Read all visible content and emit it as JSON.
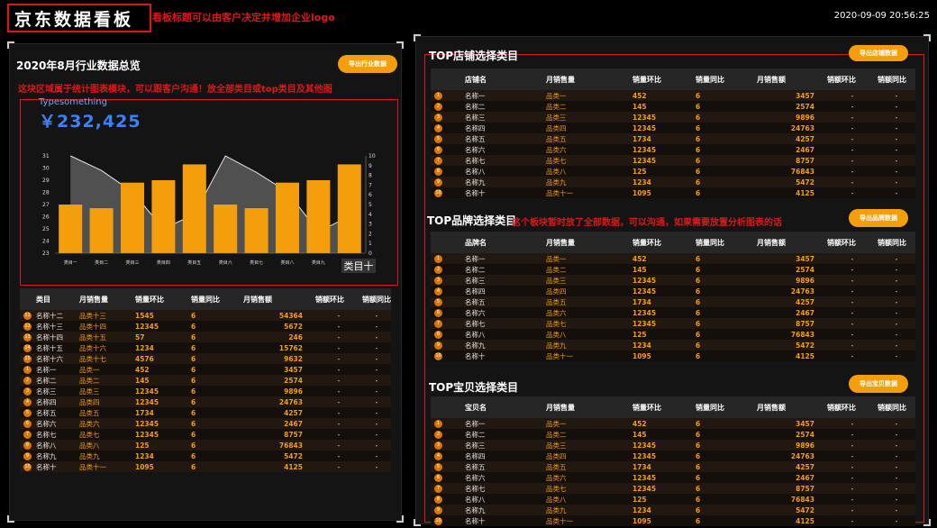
{
  "header": {
    "title": "京东数据看板",
    "note": "看板标题可以由客户决定并增加企业logo",
    "datetime": "2020-09-09 20:56:25"
  },
  "colors": {
    "accent": "#f59e0b",
    "red": "#e0161b",
    "blue": "#3b82f6"
  },
  "left_panel": {
    "title": "2020年8月行业数据总览",
    "export_label": "导出行业数据",
    "note": "这块区域属于统计图表模块，可以跟客户沟通！放全部类目或top类目及其他图",
    "chart_caption": "Typesomething",
    "chart_value": "￥232,425",
    "category_badge": "类目十",
    "table": {
      "columns": [
        "类目",
        "月销售量",
        "销量环比",
        "销量同比",
        "月销售额",
        "销额环比",
        "销额同比"
      ],
      "rows": [
        {
          "rank": "11",
          "name": "名称十二",
          "cat": "品类十三",
          "mom": "1545",
          "yoy": "6",
          "amount": "54364",
          "amom": "-",
          "ayoy": "-"
        },
        {
          "rank": "12",
          "name": "名称十三",
          "cat": "品类十四",
          "mom": "12345",
          "yoy": "6",
          "amount": "5672",
          "amom": "-",
          "ayoy": "-"
        },
        {
          "rank": "13",
          "name": "名称十四",
          "cat": "品类十五",
          "mom": "57",
          "yoy": "6",
          "amount": "246",
          "amom": "-",
          "ayoy": "-"
        },
        {
          "rank": "14",
          "name": "名称十五",
          "cat": "品类十六",
          "mom": "1234",
          "yoy": "6",
          "amount": "15762",
          "amom": "-",
          "ayoy": "-"
        },
        {
          "rank": "15",
          "name": "名称十六",
          "cat": "品类十七",
          "mom": "4576",
          "yoy": "6",
          "amount": "9632",
          "amom": "-",
          "ayoy": "-"
        },
        {
          "rank": "1",
          "name": "名称一",
          "cat": "品类一",
          "mom": "452",
          "yoy": "6",
          "amount": "3457",
          "amom": "-",
          "ayoy": "-"
        },
        {
          "rank": "2",
          "name": "名称二",
          "cat": "品类二",
          "mom": "145",
          "yoy": "6",
          "amount": "2574",
          "amom": "-",
          "ayoy": "-"
        },
        {
          "rank": "3",
          "name": "名称三",
          "cat": "品类三",
          "mom": "12345",
          "yoy": "6",
          "amount": "9896",
          "amom": "-",
          "ayoy": "-"
        },
        {
          "rank": "4",
          "name": "名称四",
          "cat": "品类四",
          "mom": "12345",
          "yoy": "6",
          "amount": "24763",
          "amom": "-",
          "ayoy": "-"
        },
        {
          "rank": "5",
          "name": "名称五",
          "cat": "品类五",
          "mom": "1734",
          "yoy": "6",
          "amount": "4257",
          "amom": "-",
          "ayoy": "-"
        },
        {
          "rank": "6",
          "name": "名称六",
          "cat": "品类六",
          "mom": "12345",
          "yoy": "6",
          "amount": "2467",
          "amom": "-",
          "ayoy": "-"
        },
        {
          "rank": "7",
          "name": "名称七",
          "cat": "品类七",
          "mom": "12345",
          "yoy": "6",
          "amount": "8757",
          "amom": "-",
          "ayoy": "-"
        },
        {
          "rank": "8",
          "name": "名称八",
          "cat": "品类八",
          "mom": "125",
          "yoy": "6",
          "amount": "76843",
          "amom": "-",
          "ayoy": "-"
        },
        {
          "rank": "9",
          "name": "名称九",
          "cat": "品类九",
          "mom": "1234",
          "yoy": "6",
          "amount": "5472",
          "amom": "-",
          "ayoy": "-"
        },
        {
          "rank": "10",
          "name": "名称十",
          "cat": "品类十一",
          "mom": "1095",
          "yoy": "6",
          "amount": "4125",
          "amom": "-",
          "ayoy": "-"
        }
      ]
    }
  },
  "chart_data": {
    "type": "bar",
    "categories": [
      "类目一",
      "类目二",
      "类目三",
      "类目四",
      "类目五",
      "类目六",
      "类目七",
      "类目八",
      "类目九",
      "类目十"
    ],
    "series": [
      {
        "name": "bars",
        "axis": "left",
        "values": [
          27,
          26.7,
          28.8,
          29,
          30.3,
          27,
          26.7,
          28.8,
          29,
          30.3
        ]
      },
      {
        "name": "area",
        "axis": "right",
        "values": [
          10,
          8.5,
          6.3,
          2.5,
          4,
          10,
          8.3,
          6.3,
          2.2,
          3.8
        ]
      }
    ],
    "y_left": {
      "min": 23,
      "max": 31,
      "ticks": [
        "23",
        "24",
        "25",
        "26",
        "27",
        "28",
        "29",
        "30",
        "31"
      ]
    },
    "y_right": {
      "min": 0,
      "max": 10,
      "ticks": [
        "0",
        "1",
        "2",
        "3",
        "4",
        "5",
        "6",
        "7",
        "8",
        "9",
        "10"
      ]
    },
    "xlabel": "",
    "ylabel": ""
  },
  "right_panel": {
    "store": {
      "title": "TOP店铺选择类目",
      "export_label": "导出店铺数据",
      "columns": [
        "店铺名",
        "月销售量",
        "销量环比",
        "销量同比",
        "月销售额",
        "销额环比",
        "销额同比"
      ],
      "rows": [
        {
          "rank": "1",
          "name": "名称一",
          "cat": "品类一",
          "mom": "452",
          "yoy": "6",
          "amount": "3457",
          "amom": "-",
          "ayoy": "-"
        },
        {
          "rank": "2",
          "name": "名称二",
          "cat": "品类二",
          "mom": "145",
          "yoy": "6",
          "amount": "2574",
          "amom": "-",
          "ayoy": "-"
        },
        {
          "rank": "3",
          "name": "名称三",
          "cat": "品类三",
          "mom": "12345",
          "yoy": "6",
          "amount": "9896",
          "amom": "-",
          "ayoy": "-"
        },
        {
          "rank": "4",
          "name": "名称四",
          "cat": "品类四",
          "mom": "12345",
          "yoy": "6",
          "amount": "24763",
          "amom": "-",
          "ayoy": "-"
        },
        {
          "rank": "5",
          "name": "名称五",
          "cat": "品类五",
          "mom": "1734",
          "yoy": "6",
          "amount": "4257",
          "amom": "-",
          "ayoy": "-"
        },
        {
          "rank": "6",
          "name": "名称六",
          "cat": "品类六",
          "mom": "12345",
          "yoy": "6",
          "amount": "2467",
          "amom": "-",
          "ayoy": "-"
        },
        {
          "rank": "7",
          "name": "名称七",
          "cat": "品类七",
          "mom": "12345",
          "yoy": "6",
          "amount": "8757",
          "amom": "-",
          "ayoy": "-"
        },
        {
          "rank": "8",
          "name": "名称八",
          "cat": "品类八",
          "mom": "125",
          "yoy": "6",
          "amount": "76843",
          "amom": "-",
          "ayoy": "-"
        },
        {
          "rank": "9",
          "name": "名称九",
          "cat": "品类九",
          "mom": "1234",
          "yoy": "6",
          "amount": "5472",
          "amom": "-",
          "ayoy": "-"
        },
        {
          "rank": "10",
          "name": "名称十",
          "cat": "品类十一",
          "mom": "1095",
          "yoy": "6",
          "amount": "4125",
          "amom": "-",
          "ayoy": "-"
        }
      ]
    },
    "brand": {
      "title": "TOP品牌选择类目",
      "note": "这个板块暂时放了全部数据，可以沟通，如果需要放置分析图表的话",
      "export_label": "导出品牌数据",
      "columns": [
        "品牌名",
        "月销售量",
        "销量环比",
        "销量同比",
        "月销售额",
        "销额环比",
        "销额同比"
      ],
      "rows": [
        {
          "rank": "1",
          "name": "名称一",
          "cat": "品类一",
          "mom": "452",
          "yoy": "6",
          "amount": "3457",
          "amom": "-",
          "ayoy": "-"
        },
        {
          "rank": "2",
          "name": "名称二",
          "cat": "品类二",
          "mom": "145",
          "yoy": "6",
          "amount": "2574",
          "amom": "-",
          "ayoy": "-"
        },
        {
          "rank": "3",
          "name": "名称三",
          "cat": "品类三",
          "mom": "12345",
          "yoy": "6",
          "amount": "9896",
          "amom": "-",
          "ayoy": "-"
        },
        {
          "rank": "4",
          "name": "名称四",
          "cat": "品类四",
          "mom": "12345",
          "yoy": "6",
          "amount": "24763",
          "amom": "-",
          "ayoy": "-"
        },
        {
          "rank": "5",
          "name": "名称五",
          "cat": "品类五",
          "mom": "1734",
          "yoy": "6",
          "amount": "4257",
          "amom": "-",
          "ayoy": "-"
        },
        {
          "rank": "6",
          "name": "名称六",
          "cat": "品类六",
          "mom": "12345",
          "yoy": "6",
          "amount": "2467",
          "amom": "-",
          "ayoy": "-"
        },
        {
          "rank": "7",
          "name": "名称七",
          "cat": "品类七",
          "mom": "12345",
          "yoy": "6",
          "amount": "8757",
          "amom": "-",
          "ayoy": "-"
        },
        {
          "rank": "8",
          "name": "名称八",
          "cat": "品类八",
          "mom": "125",
          "yoy": "6",
          "amount": "76843",
          "amom": "-",
          "ayoy": "-"
        },
        {
          "rank": "9",
          "name": "名称九",
          "cat": "品类九",
          "mom": "1234",
          "yoy": "6",
          "amount": "5472",
          "amom": "-",
          "ayoy": "-"
        },
        {
          "rank": "10",
          "name": "名称十",
          "cat": "品类十一",
          "mom": "1095",
          "yoy": "6",
          "amount": "4125",
          "amom": "-",
          "ayoy": "-"
        }
      ]
    },
    "baby": {
      "title": "TOP宝贝选择类目",
      "export_label": "导出宝贝数据",
      "columns": [
        "宝贝名",
        "月销售量",
        "销量环比",
        "销量同比",
        "月销售额",
        "销额环比",
        "销额同比"
      ],
      "rows": [
        {
          "rank": "1",
          "name": "名称一",
          "cat": "品类一",
          "mom": "452",
          "yoy": "6",
          "amount": "3457",
          "amom": "-",
          "ayoy": "-"
        },
        {
          "rank": "2",
          "name": "名称二",
          "cat": "品类二",
          "mom": "145",
          "yoy": "6",
          "amount": "2574",
          "amom": "-",
          "ayoy": "-"
        },
        {
          "rank": "3",
          "name": "名称三",
          "cat": "品类三",
          "mom": "12345",
          "yoy": "6",
          "amount": "9896",
          "amom": "-",
          "ayoy": "-"
        },
        {
          "rank": "4",
          "name": "名称四",
          "cat": "品类四",
          "mom": "12345",
          "yoy": "6",
          "amount": "24763",
          "amom": "-",
          "ayoy": "-"
        },
        {
          "rank": "5",
          "name": "名称五",
          "cat": "品类五",
          "mom": "1734",
          "yoy": "6",
          "amount": "4257",
          "amom": "-",
          "ayoy": "-"
        },
        {
          "rank": "6",
          "name": "名称六",
          "cat": "品类六",
          "mom": "12345",
          "yoy": "6",
          "amount": "2467",
          "amom": "-",
          "ayoy": "-"
        },
        {
          "rank": "7",
          "name": "名称七",
          "cat": "品类七",
          "mom": "12345",
          "yoy": "6",
          "amount": "8757",
          "amom": "-",
          "ayoy": "-"
        },
        {
          "rank": "8",
          "name": "名称八",
          "cat": "品类八",
          "mom": "125",
          "yoy": "6",
          "amount": "76843",
          "amom": "-",
          "ayoy": "-"
        },
        {
          "rank": "9",
          "name": "名称九",
          "cat": "品类九",
          "mom": "1234",
          "yoy": "6",
          "amount": "5472",
          "amom": "-",
          "ayoy": "-"
        },
        {
          "rank": "10",
          "name": "名称十",
          "cat": "品类十一",
          "mom": "1095",
          "yoy": "6",
          "amount": "4125",
          "amom": "-",
          "ayoy": "-"
        }
      ]
    }
  }
}
